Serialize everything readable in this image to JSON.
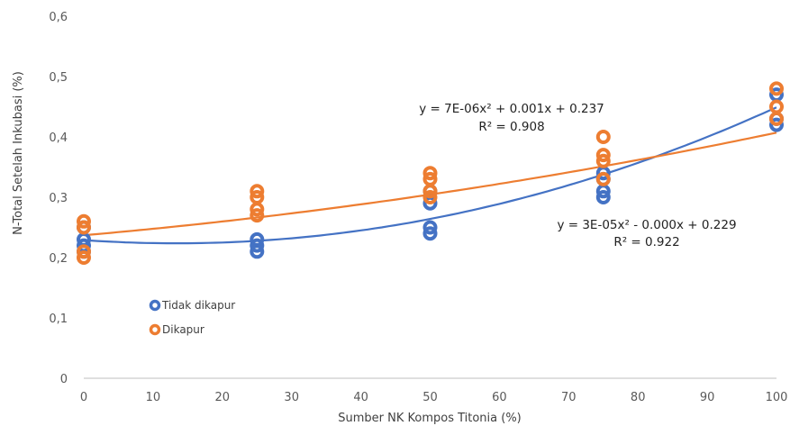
{
  "chart_data": {
    "type": "scatter",
    "title": "",
    "xlabel": "Sumber NK Kompos Titonia (%)",
    "ylabel": "N-Total Setelah Inkubasi (%)",
    "xlim": [
      0,
      100
    ],
    "ylim": [
      0,
      0.6
    ],
    "xticks": [
      0,
      10,
      20,
      30,
      40,
      50,
      60,
      70,
      80,
      90,
      100
    ],
    "yticks": [
      "0",
      "0,1",
      "0,2",
      "0,3",
      "0,4",
      "0,5",
      "0,6"
    ],
    "grid": false,
    "legend_position": "left",
    "series": [
      {
        "name": "Tidak dikapur",
        "color": "#4472C4",
        "points": [
          [
            0,
            0.21
          ],
          [
            0,
            0.22
          ],
          [
            0,
            0.23
          ],
          [
            0,
            0.25
          ],
          [
            25,
            0.21
          ],
          [
            25,
            0.22
          ],
          [
            25,
            0.23
          ],
          [
            50,
            0.24
          ],
          [
            50,
            0.25
          ],
          [
            50,
            0.29
          ],
          [
            50,
            0.31
          ],
          [
            75,
            0.3
          ],
          [
            75,
            0.31
          ],
          [
            75,
            0.33
          ],
          [
            75,
            0.34
          ],
          [
            100,
            0.42
          ],
          [
            100,
            0.43
          ],
          [
            100,
            0.47
          ]
        ],
        "trendline": {
          "a": 3e-05,
          "b": -0.0008,
          "c": 0.229
        },
        "equation": "y = 3E-05x² - 0.000x + 0.229",
        "r2": "R² = 0.922"
      },
      {
        "name": "Dikapur",
        "color": "#ED7D31",
        "points": [
          [
            0,
            0.2
          ],
          [
            0,
            0.21
          ],
          [
            0,
            0.25
          ],
          [
            0,
            0.26
          ],
          [
            25,
            0.27
          ],
          [
            25,
            0.28
          ],
          [
            25,
            0.3
          ],
          [
            25,
            0.31
          ],
          [
            50,
            0.3
          ],
          [
            50,
            0.31
          ],
          [
            50,
            0.33
          ],
          [
            50,
            0.34
          ],
          [
            75,
            0.33
          ],
          [
            75,
            0.36
          ],
          [
            75,
            0.37
          ],
          [
            75,
            0.4
          ],
          [
            100,
            0.43
          ],
          [
            100,
            0.45
          ],
          [
            100,
            0.48
          ]
        ],
        "trendline": {
          "a": 7e-06,
          "b": 0.001,
          "c": 0.237
        },
        "equation": "y = 7E-06x² + 0.001x + 0.237",
        "r2": "R² = 0.908"
      }
    ]
  }
}
